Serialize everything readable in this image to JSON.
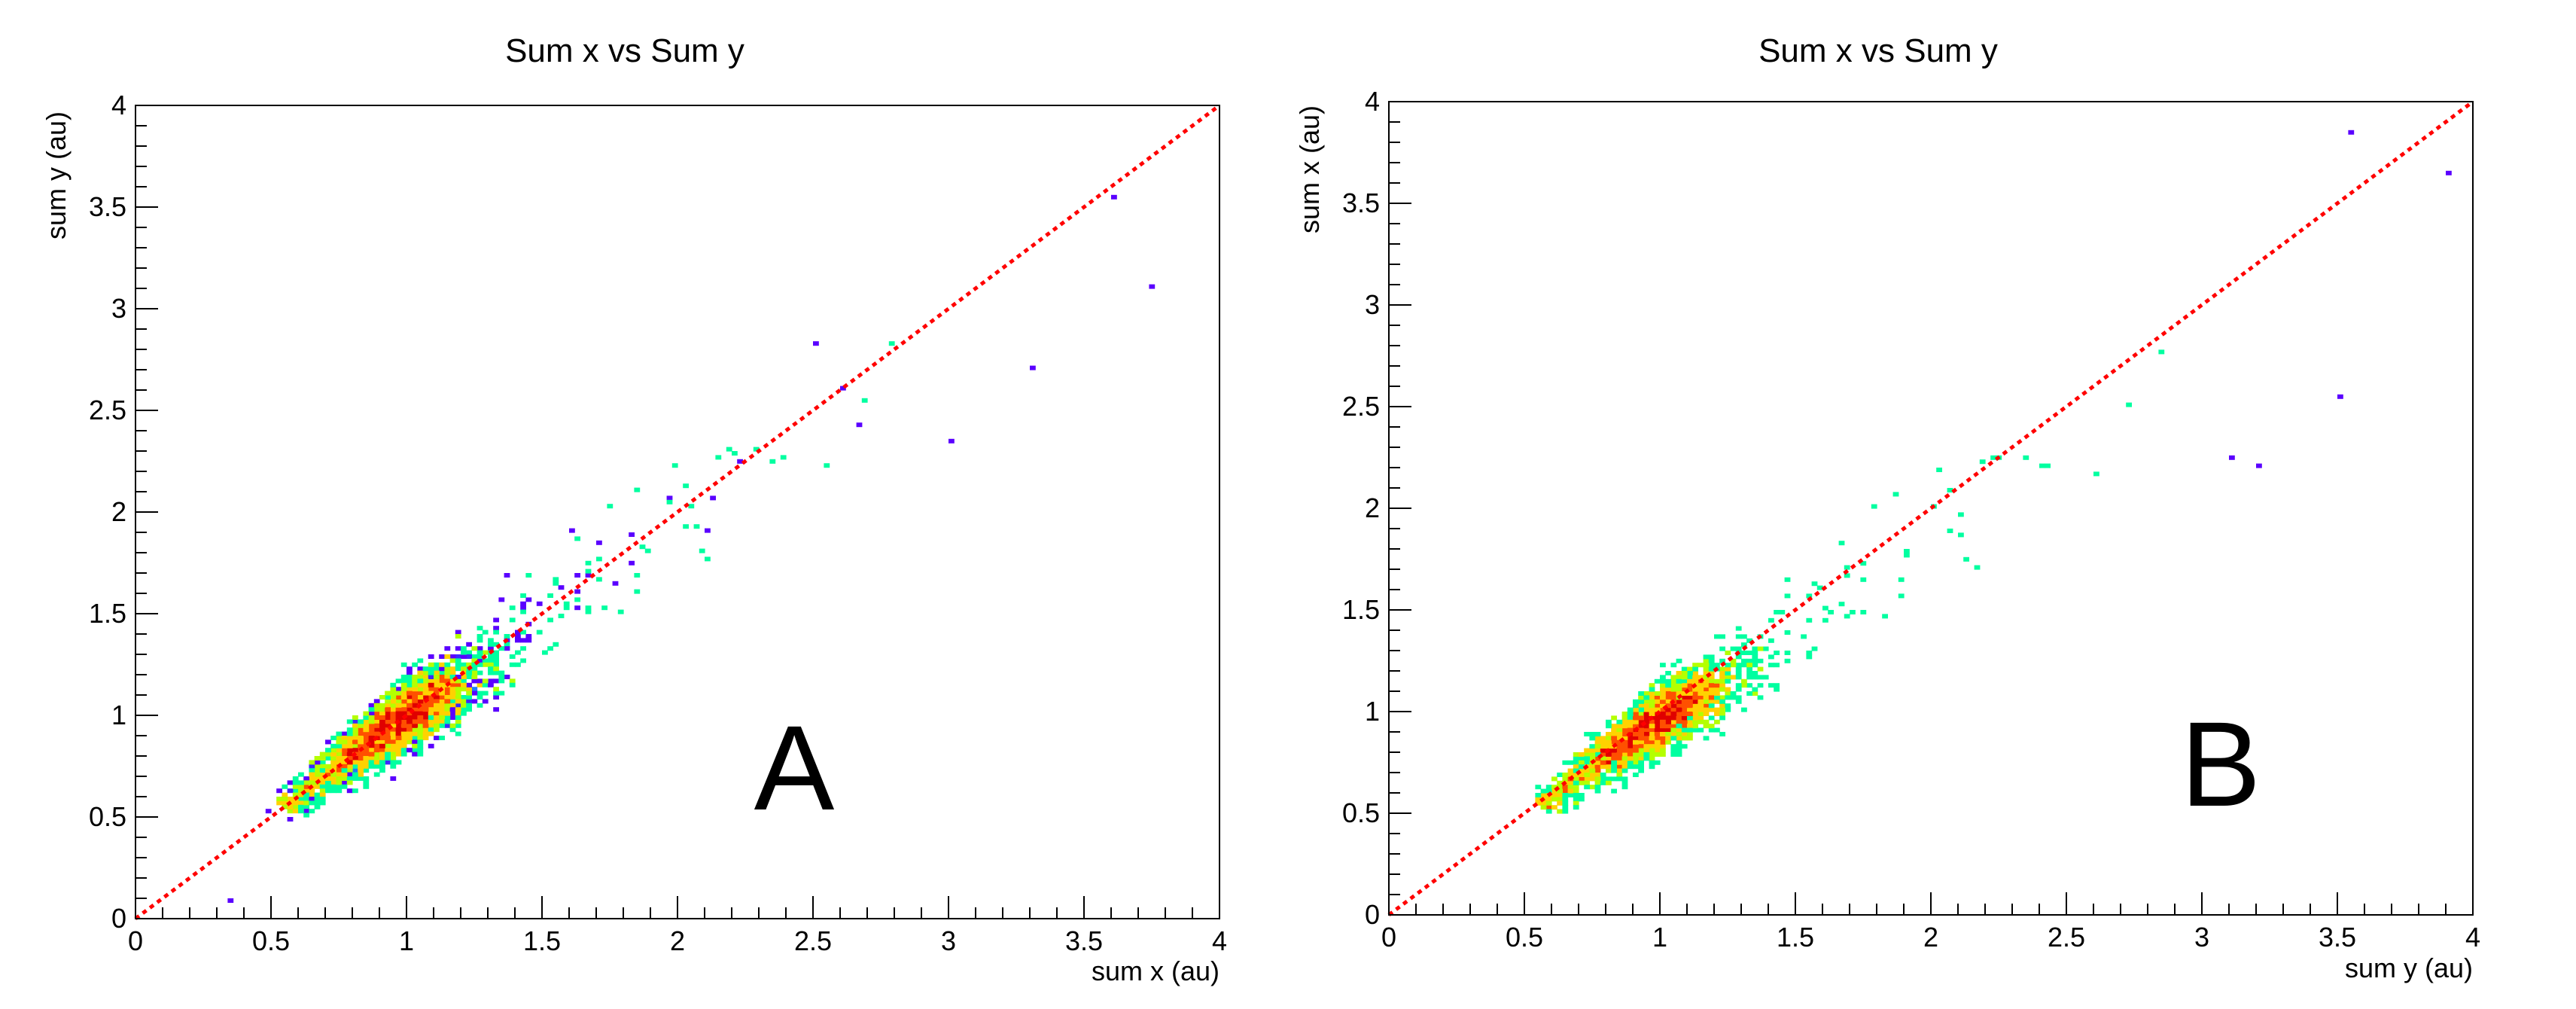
{
  "chart_data": [
    {
      "type": "heatmap",
      "title": "Sum x vs Sum y",
      "xlabel": "sum x (au)",
      "ylabel": "sum y (au)",
      "xlim": [
        0,
        4
      ],
      "ylim": [
        0,
        4
      ],
      "x_ticks": [
        "0",
        "0.5",
        "1",
        "1.5",
        "2",
        "2.5",
        "3",
        "3.5",
        "4"
      ],
      "y_ticks": [
        "0",
        "0.5",
        "1",
        "1.5",
        "2",
        "2.5",
        "3",
        "3.5",
        "4"
      ],
      "panel_label": "A",
      "reference_line": {
        "x": [
          0,
          4
        ],
        "y": [
          0,
          4
        ],
        "color": "#ff0000",
        "style": "dotted"
      },
      "density_peak": {
        "x": 0.95,
        "y": 0.95
      },
      "distribution": {
        "ratio_mean": 1.0,
        "spread": 0.13
      },
      "outliers": [
        [
          3.3,
          2.7
        ],
        [
          3.0,
          2.35
        ],
        [
          3.75,
          3.1
        ],
        [
          3.6,
          3.55
        ],
        [
          0.35,
          0.08
        ]
      ],
      "grid": false
    },
    {
      "type": "heatmap",
      "title": "Sum x vs Sum y",
      "xlabel": "sum y (au)",
      "ylabel": "sum x (au)",
      "xlim": [
        0,
        4
      ],
      "ylim": [
        0,
        4
      ],
      "x_ticks": [
        "0",
        "0.5",
        "1",
        "1.5",
        "2",
        "2.5",
        "3",
        "3.5",
        "4"
      ],
      "y_ticks": [
        "0",
        "0.5",
        "1",
        "1.5",
        "2",
        "2.5",
        "3",
        "3.5",
        "4"
      ],
      "panel_label": "B",
      "reference_line": {
        "x": [
          0,
          4
        ],
        "y": [
          0,
          4
        ],
        "color": "#ff0000",
        "style": "dotted"
      },
      "density_peak": {
        "x": 0.95,
        "y": 0.95
      },
      "distribution": {
        "ratio_mean": 0.96,
        "spread": 0.13
      },
      "outliers": [
        [
          3.2,
          2.2
        ],
        [
          3.5,
          2.55
        ],
        [
          3.9,
          3.65
        ],
        [
          3.55,
          3.85
        ],
        [
          3.1,
          2.25
        ]
      ],
      "grid": false
    }
  ],
  "colors": {
    "scale": [
      "#5a00ff",
      "#3c28ff",
      "#1e78ff",
      "#00c8ff",
      "#00ffa0",
      "#b4ff00",
      "#ffd200",
      "#ff5000",
      "#e00000"
    ],
    "reference_line": "#ff0000"
  }
}
